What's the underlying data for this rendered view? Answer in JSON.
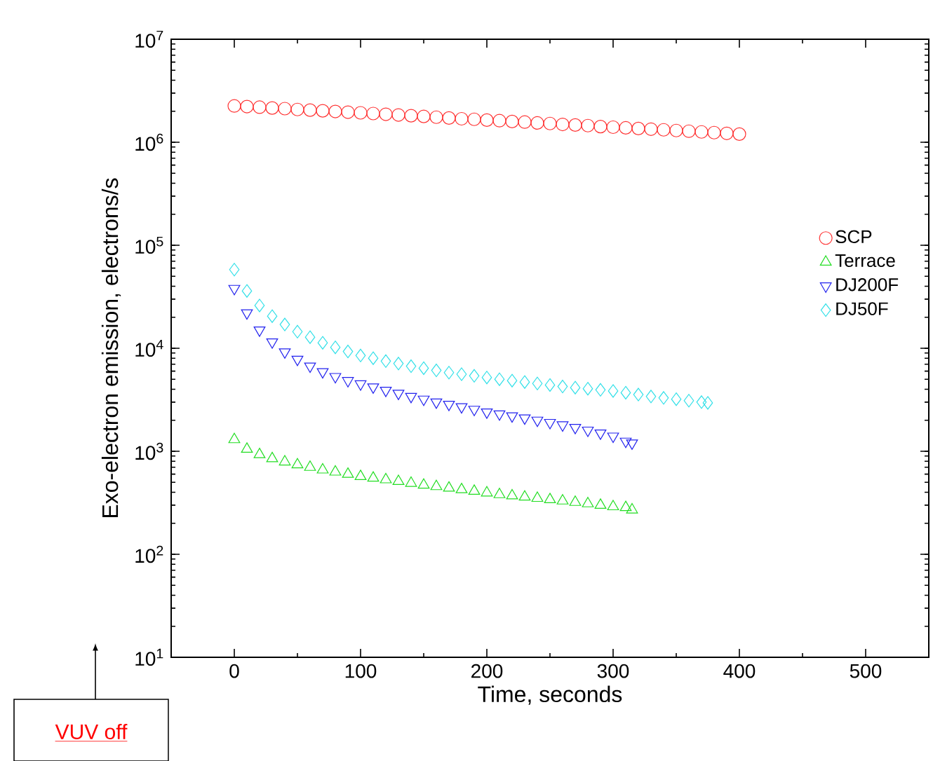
{
  "chart_data": {
    "type": "scatter",
    "xlabel": "Time, seconds",
    "ylabel": "Exo-electron emission, electrons/s",
    "log": "y",
    "xlim": [
      -50,
      550
    ],
    "xticks": [
      0,
      100,
      200,
      300,
      400,
      500
    ],
    "ylim": [
      10,
      10000000
    ],
    "yticks": [
      {
        "value": 10,
        "label": "10$^{1}$"
      },
      {
        "value": 100,
        "label": "10$^{2}$"
      },
      {
        "value": 1000,
        "label": "10$^{3}$"
      },
      {
        "value": 10000,
        "label": "10$^{4}$"
      },
      {
        "value": 100000,
        "label": "10$^{5}$"
      },
      {
        "value": 1000000,
        "label": "10$^{6}$"
      },
      {
        "value": 10000000,
        "label": "10$^{7}$"
      }
    ],
    "grid": false,
    "legend": "right",
    "annotations": [
      "VUV off"
    ],
    "series": [
      {
        "name": "SCP",
        "color": "#ff3333",
        "marker": "circle",
        "x": [
          0,
          10,
          20,
          30,
          40,
          50,
          60,
          70,
          80,
          90,
          100,
          110,
          120,
          130,
          140,
          150,
          160,
          170,
          180,
          190,
          200,
          210,
          220,
          230,
          240,
          250,
          260,
          270,
          280,
          290,
          300,
          310,
          320,
          330,
          340,
          350,
          360,
          370,
          380,
          390,
          400
        ],
        "values": [
          2250000,
          2220000,
          2190000,
          2150000,
          2120000,
          2080000,
          2050000,
          2020000,
          1990000,
          1960000,
          1930000,
          1900000,
          1870000,
          1840000,
          1810000,
          1780000,
          1750000,
          1720000,
          1690000,
          1670000,
          1640000,
          1620000,
          1590000,
          1570000,
          1540000,
          1520000,
          1490000,
          1470000,
          1450000,
          1420000,
          1400000,
          1380000,
          1360000,
          1340000,
          1320000,
          1300000,
          1280000,
          1260000,
          1240000,
          1220000,
          1200000
        ]
      },
      {
        "name": "Terrace",
        "color": "#22dd22",
        "marker": "triangle",
        "x": [
          0,
          10,
          20,
          30,
          40,
          50,
          60,
          70,
          80,
          90,
          100,
          110,
          120,
          130,
          140,
          150,
          160,
          170,
          180,
          190,
          200,
          210,
          220,
          230,
          240,
          250,
          260,
          270,
          280,
          290,
          300,
          310,
          315
        ],
        "values": [
          1300,
          1050,
          930,
          850,
          790,
          740,
          700,
          660,
          630,
          600,
          570,
          550,
          530,
          510,
          490,
          470,
          455,
          440,
          425,
          410,
          395,
          380,
          370,
          360,
          350,
          340,
          330,
          320,
          310,
          300,
          290,
          285,
          270
        ]
      },
      {
        "name": "DJ200F",
        "color": "#2222ee",
        "marker": "triangle down",
        "x": [
          0,
          10,
          20,
          30,
          40,
          50,
          60,
          70,
          80,
          90,
          100,
          110,
          120,
          130,
          140,
          150,
          160,
          170,
          180,
          190,
          200,
          210,
          220,
          230,
          240,
          250,
          260,
          270,
          280,
          290,
          300,
          310,
          315
        ],
        "values": [
          38000,
          22000,
          15000,
          11500,
          9200,
          7800,
          6700,
          5900,
          5300,
          4850,
          4500,
          4200,
          3900,
          3650,
          3400,
          3200,
          3000,
          2850,
          2700,
          2550,
          2400,
          2300,
          2200,
          2100,
          2000,
          1900,
          1800,
          1700,
          1600,
          1500,
          1400,
          1250,
          1200
        ]
      },
      {
        "name": "DJ50F",
        "color": "#33e0e8",
        "marker": "diamond",
        "x": [
          0,
          10,
          20,
          30,
          40,
          50,
          60,
          70,
          80,
          90,
          100,
          110,
          120,
          130,
          140,
          150,
          160,
          170,
          180,
          190,
          200,
          210,
          220,
          230,
          240,
          250,
          260,
          270,
          280,
          290,
          300,
          310,
          320,
          330,
          340,
          350,
          360,
          370,
          375
        ],
        "values": [
          58000,
          36000,
          26000,
          20500,
          17000,
          14500,
          12800,
          11300,
          10200,
          9300,
          8500,
          8000,
          7500,
          7100,
          6700,
          6400,
          6100,
          5800,
          5600,
          5400,
          5200,
          5000,
          4850,
          4700,
          4550,
          4400,
          4250,
          4150,
          4050,
          3950,
          3850,
          3700,
          3550,
          3400,
          3300,
          3200,
          3100,
          3000,
          2950
        ]
      }
    ]
  }
}
